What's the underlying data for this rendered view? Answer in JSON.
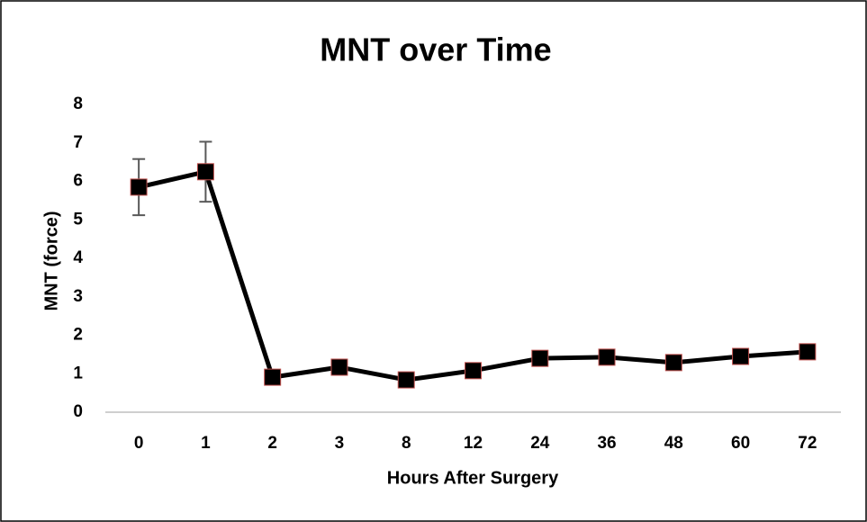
{
  "chart_data": {
    "type": "line",
    "title": "MNT over Time",
    "xlabel": "Hours After Surgery",
    "ylabel": "MNT (force)",
    "categories": [
      "0",
      "1",
      "2",
      "3",
      "8",
      "12",
      "24",
      "36",
      "48",
      "60",
      "72"
    ],
    "values": [
      5.85,
      6.25,
      0.91,
      1.17,
      0.84,
      1.08,
      1.4,
      1.43,
      1.29,
      1.45,
      1.57
    ],
    "errors": [
      0.73,
      0.78,
      null,
      null,
      null,
      null,
      null,
      null,
      null,
      null,
      null
    ],
    "color": "#000000",
    "marker_edge": "#c0504d",
    "error_color": "#595959",
    "ylim": [
      0,
      8
    ],
    "yticks": [
      0,
      1,
      2,
      3,
      4,
      5,
      6,
      7,
      8
    ],
    "grid": false
  }
}
